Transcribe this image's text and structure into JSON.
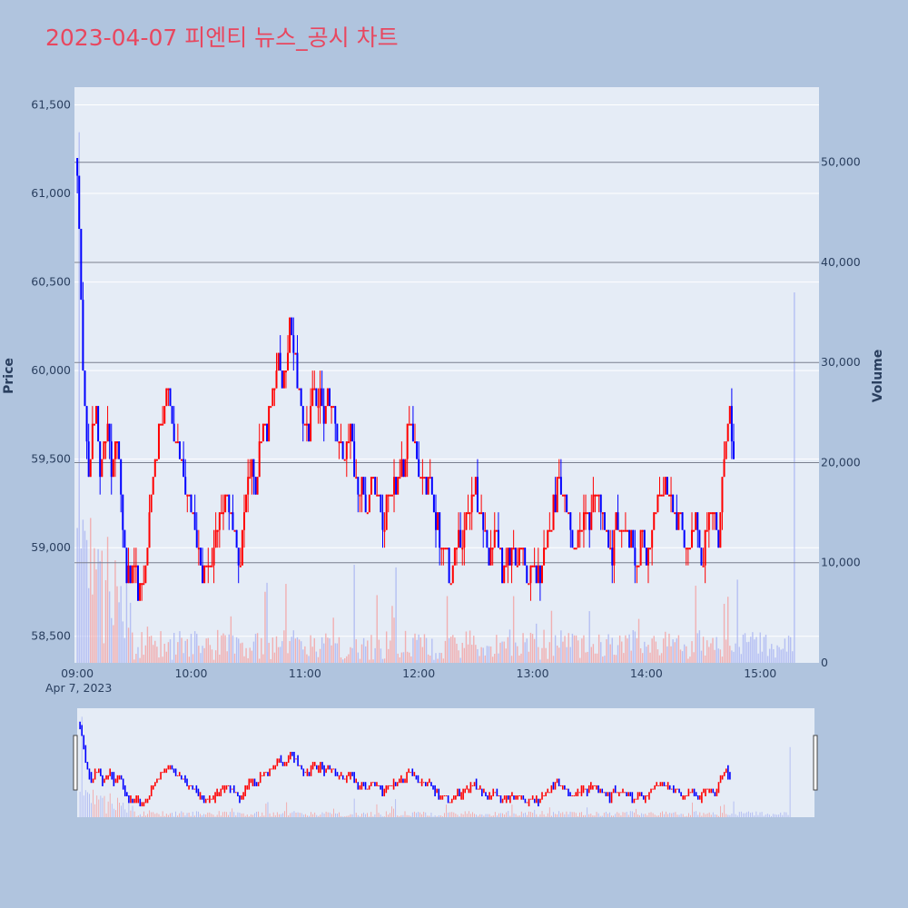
{
  "chart_data": {
    "type": "candlestick",
    "title": "2023-04-07 피엔티 뉴스_공시 차트",
    "ylabel": "Price",
    "y2label": "Volume",
    "ylim": [
      58350,
      61600
    ],
    "y2lim": [
      0,
      57500
    ],
    "price_ticks": [
      "58,500",
      "59,000",
      "59,500",
      "60,000",
      "60,500",
      "61,000",
      "61,500"
    ],
    "price_tick_values": [
      58500,
      59000,
      59500,
      60000,
      60500,
      61000,
      61500
    ],
    "volume_ticks": [
      "0",
      "10,000",
      "20,000",
      "30,000",
      "40,000",
      "50,000"
    ],
    "volume_tick_values": [
      0,
      10000,
      20000,
      30000,
      40000,
      50000
    ],
    "x_ticks": [
      "09:00",
      "10:00",
      "11:00",
      "12:00",
      "13:00",
      "14:00",
      "15:00"
    ],
    "x_tick_minutes": [
      0,
      60,
      120,
      180,
      240,
      300,
      360
    ],
    "x_date_label": "Apr 7, 2023",
    "x_range_minutes": [
      -1.5,
      391
    ],
    "reference_lines_volume": [
      10000,
      20000,
      30000,
      40000,
      50000
    ],
    "up_color": "#ff0000",
    "down_color": "#0000ff",
    "series": [
      {
        "name": "price_path",
        "minutes": [
          0,
          1,
          2,
          3,
          4,
          6,
          8,
          10,
          12,
          14,
          16,
          18,
          20,
          22,
          24,
          26,
          28,
          30,
          32,
          34,
          36,
          38,
          40,
          42,
          44,
          46,
          48,
          50,
          52,
          54,
          56,
          58,
          60,
          62,
          64,
          66,
          68,
          70,
          72,
          74,
          76,
          78,
          80,
          82,
          84,
          86,
          88,
          90,
          92,
          94,
          96,
          98,
          100,
          102,
          104,
          106,
          108,
          110,
          112,
          114,
          116,
          118,
          120,
          122,
          124,
          126,
          128,
          130,
          132,
          134,
          136,
          138,
          140,
          142,
          144,
          146,
          148,
          150,
          152,
          154,
          156,
          158,
          160,
          162,
          164,
          166,
          168,
          170,
          172,
          174,
          176,
          178,
          180,
          182,
          184,
          186,
          188,
          190,
          192,
          194,
          196,
          198,
          200,
          202,
          204,
          206,
          208,
          210,
          212,
          214,
          216,
          218,
          220,
          222,
          224,
          226,
          228,
          230,
          232,
          234,
          236,
          238,
          240,
          242,
          244,
          246,
          248,
          250,
          252,
          254,
          256,
          258,
          260,
          262,
          264,
          266,
          268,
          270,
          272,
          274,
          276,
          278,
          280,
          282,
          284,
          286,
          288,
          290,
          292,
          294,
          296,
          298,
          300,
          302,
          304,
          306,
          308,
          310,
          312,
          314,
          316,
          318,
          320,
          322,
          324,
          326,
          328,
          330,
          332,
          334,
          336,
          338,
          340,
          342,
          344,
          346,
          348,
          350,
          352,
          354,
          356,
          358,
          360,
          362,
          364,
          366,
          368,
          370,
          372,
          374,
          375,
          376,
          377,
          378
        ],
        "values": [
          61200,
          60800,
          60400,
          60000,
          59800,
          59500,
          59700,
          59800,
          59500,
          59600,
          59700,
          59400,
          59600,
          59500,
          59100,
          58800,
          58900,
          59000,
          58700,
          58800,
          58900,
          59200,
          59400,
          59500,
          59700,
          59800,
          59900,
          59700,
          59600,
          59500,
          59400,
          59300,
          59200,
          59100,
          59000,
          58900,
          58800,
          58900,
          59000,
          59100,
          59200,
          59300,
          59200,
          59100,
          59000,
          58900,
          59200,
          59400,
          59500,
          59300,
          59500,
          59700,
          59600,
          59800,
          59900,
          60100,
          59900,
          60000,
          60300,
          60200,
          60000,
          59800,
          59700,
          59600,
          59900,
          59800,
          59900,
          59700,
          59900,
          59800,
          59700,
          59600,
          59500,
          59600,
          59700,
          59500,
          59300,
          59400,
          59200,
          59300,
          59400,
          59300,
          59200,
          59100,
          59300,
          59300,
          59300,
          59400,
          59500,
          59600,
          59700,
          59600,
          59500,
          59400,
          59300,
          59400,
          59200,
          59100,
          59000,
          59000,
          58900,
          58900,
          59000,
          59000,
          59100,
          59200,
          59300,
          59300,
          59200,
          59100,
          59000,
          59000,
          59100,
          59000,
          58900,
          58900,
          59000,
          59000,
          58900,
          59000,
          58900,
          58800,
          58900,
          58900,
          58800,
          59000,
          59100,
          59200,
          59300,
          59400,
          59300,
          59200,
          59100,
          59000,
          59000,
          59100,
          59200,
          59100,
          59300,
          59300,
          59200,
          59100,
          59000,
          59000,
          59200,
          59100,
          59200,
          59100,
          59000,
          58900,
          59000,
          59100,
          58900,
          59000,
          59200,
          59300,
          59300,
          59400,
          59300,
          59200,
          59100,
          59200,
          59000,
          59000,
          59100,
          59200,
          59000,
          58900,
          59100,
          59200,
          59200,
          59000,
          59400,
          59600,
          59800,
          59500
        ]
      }
    ]
  }
}
